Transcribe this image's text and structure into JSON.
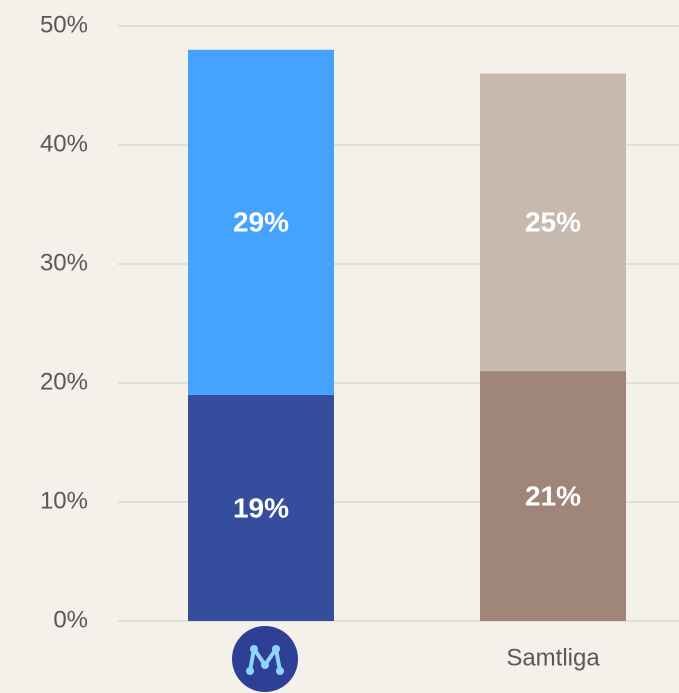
{
  "chart_data": {
    "type": "stacked_bar",
    "categories": [
      null,
      "Samtliga"
    ],
    "series": [
      {
        "colors": [
          "#344d9c",
          "#a08678"
        ],
        "values": [
          19,
          21
        ],
        "value_labels": [
          "19%",
          "21%"
        ]
      },
      {
        "colors": [
          "#46a2ff",
          "#c8b9af"
        ],
        "values": [
          29,
          25
        ],
        "value_labels": [
          "29%",
          "25%"
        ]
      }
    ],
    "ylim": [
      0,
      50
    ],
    "yticks": [
      {
        "value": 0,
        "label": "0%"
      },
      {
        "value": 10,
        "label": "10%"
      },
      {
        "value": 20,
        "label": "20%"
      },
      {
        "value": 30,
        "label": "30%"
      },
      {
        "value": 40,
        "label": "40%"
      },
      {
        "value": 50,
        "label": "50%"
      }
    ],
    "grid": true
  }
}
